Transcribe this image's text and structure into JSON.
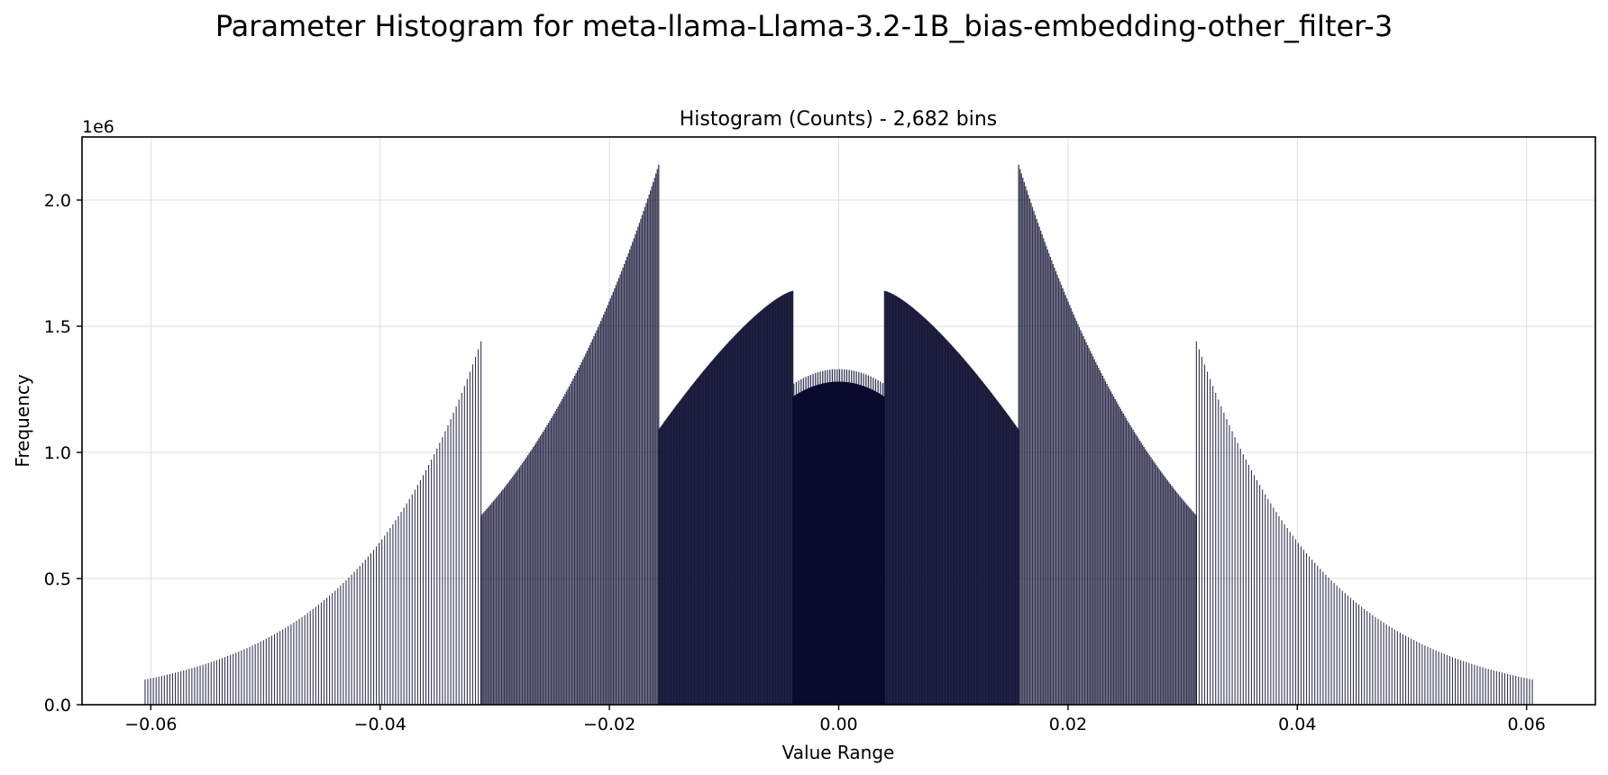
{
  "chart_data": {
    "type": "bar",
    "title": "Parameter Histogram for meta-llama-Llama-3.2-1B_bias-embedding-other_filter-3",
    "subtitle": "Histogram (Counts) - 2,682 bins",
    "xlabel": "Value Range",
    "ylabel": "Frequency",
    "y_scale_label": "1e6",
    "xlim": [
      -0.066,
      0.066
    ],
    "ylim": [
      0,
      2250000
    ],
    "x_ticks": [
      -0.06,
      -0.04,
      -0.02,
      0.0,
      0.02,
      0.04,
      0.06
    ],
    "x_tick_labels": [
      "−0.06",
      "−0.04",
      "−0.02",
      "0.00",
      "0.02",
      "0.04",
      "0.06"
    ],
    "y_ticks": [
      0,
      500000,
      1000000,
      1500000,
      2000000
    ],
    "y_tick_labels": [
      "0.0",
      "0.5",
      "1.0",
      "1.5",
      "2.0"
    ],
    "grid": true,
    "bar_color": "#0a0a2e",
    "segments": [
      {
        "x0": -0.0605,
        "x1": -0.0312,
        "y0": 100000,
        "y1": 1440000,
        "shape": "exp",
        "step": 0.00024
      },
      {
        "x0": -0.0312,
        "x1": -0.0157,
        "y0": 750000,
        "y1": 2140000,
        "shape": "exp",
        "step": 0.00012
      },
      {
        "x0": -0.0157,
        "x1": -0.004,
        "y0": 1090000,
        "y1": 1640000,
        "shape": "concave",
        "step": 6e-05
      },
      {
        "x0": -0.004,
        "x1": 0.004,
        "y0": 1280000,
        "y1": 1280000,
        "shape": "dome",
        "step": 3e-05
      },
      {
        "x0": 0.004,
        "x1": 0.0157,
        "y0": 1640000,
        "y1": 1090000,
        "shape": "concave",
        "step": 6e-05
      },
      {
        "x0": 0.0157,
        "x1": 0.0312,
        "y0": 2140000,
        "y1": 750000,
        "shape": "exp",
        "step": 0.00012
      },
      {
        "x0": 0.0312,
        "x1": 0.0605,
        "y0": 1440000,
        "y1": 100000,
        "shape": "exp",
        "step": 0.00024
      }
    ]
  }
}
